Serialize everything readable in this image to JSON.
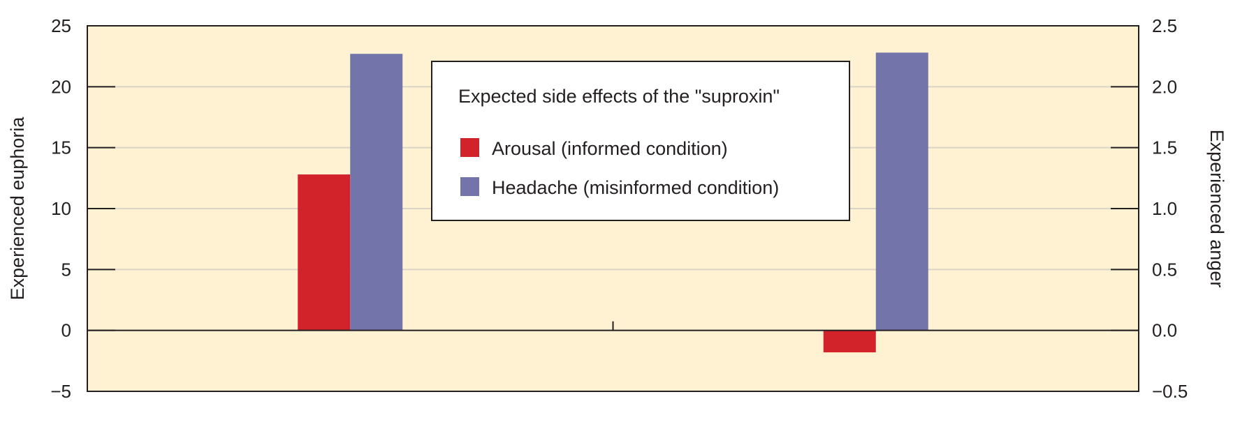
{
  "chart_data": {
    "type": "bar",
    "legend_title": "Expected side effects of the \"suproxin\"",
    "legend_position": "top-center",
    "grid": true,
    "ylabel": "Experienced euphoria",
    "y2label": "Experienced anger",
    "ylim": [
      -5,
      25
    ],
    "y2lim": [
      -0.5,
      2.5
    ],
    "y_ticks": [
      "25",
      "20",
      "15",
      "10",
      "5",
      "0",
      "−5"
    ],
    "y_tick_values": [
      25,
      20,
      15,
      10,
      5,
      0,
      -5
    ],
    "y2_ticks": [
      "2.5",
      "2.0",
      "1.5",
      "1.0",
      "0.5",
      "0.0",
      "−0.5"
    ],
    "y2_tick_values": [
      2.5,
      2.0,
      1.5,
      1.0,
      0.5,
      0.0,
      -0.5
    ],
    "groups": [
      {
        "axis": "left",
        "values": [
          12.8,
          22.7
        ]
      },
      {
        "axis": "right",
        "values": [
          -0.18,
          2.28
        ]
      }
    ],
    "series": [
      {
        "name": "Arousal (informed condition)",
        "color": "#d2232a"
      },
      {
        "name": "Headache (misinformed condition)",
        "color": "#7374a9"
      }
    ],
    "colors": {
      "plot_background": "#fff2d2",
      "gridline": "#d9d4c6",
      "axis": "#231f20"
    }
  }
}
